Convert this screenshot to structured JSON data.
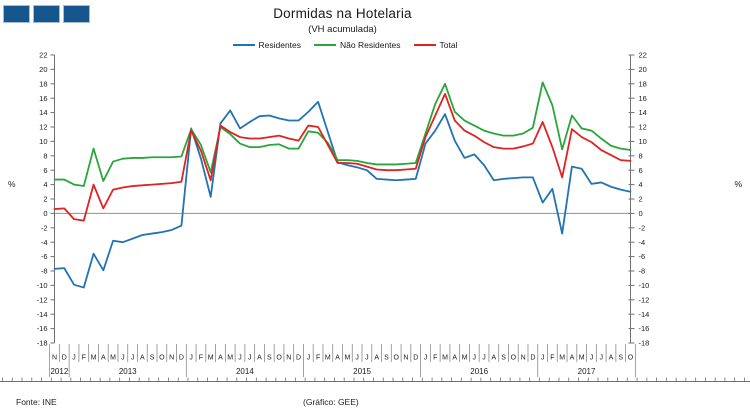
{
  "header": {
    "title": "Dormidas na Hotelaria",
    "subtitle": "(VH acumulada)"
  },
  "footer": {
    "source": "Fonte: INE",
    "credit": "(Gráfico: GEE)"
  },
  "chart_data": {
    "type": "line",
    "title": "Dormidas na Hotelaria",
    "subtitle": "(VH acumulada)",
    "unit_label": "%",
    "ylim": [
      -18,
      22
    ],
    "ytick_step": 2,
    "grid": "zero-line-only",
    "legend_position": "top-center",
    "axis_color": "#707070",
    "zero_line_color": "#909090",
    "x_month_labels": [
      "N",
      "D",
      "J",
      "F",
      "M",
      "A",
      "M",
      "J",
      "J",
      "A",
      "S",
      "O",
      "N",
      "D",
      "J",
      "F",
      "M",
      "A",
      "M",
      "J",
      "J",
      "A",
      "S",
      "O",
      "N",
      "D",
      "J",
      "F",
      "M",
      "A",
      "M",
      "J",
      "J",
      "A",
      "S",
      "O",
      "N",
      "D",
      "J",
      "F",
      "M",
      "A",
      "M",
      "J",
      "J",
      "A",
      "S",
      "O",
      "N",
      "D",
      "J",
      "F",
      "M",
      "A",
      "M",
      "J",
      "J",
      "A",
      "S",
      "O"
    ],
    "x_years": [
      {
        "label": "2012",
        "from": 0,
        "to": 1
      },
      {
        "label": "2013",
        "from": 2,
        "to": 13
      },
      {
        "label": "2014",
        "from": 14,
        "to": 25
      },
      {
        "label": "2015",
        "from": 26,
        "to": 37
      },
      {
        "label": "2016",
        "from": 38,
        "to": 49
      },
      {
        "label": "2017",
        "from": 50,
        "to": 59
      }
    ],
    "series": [
      {
        "name": "Residentes",
        "color": "#2173B4",
        "values": [
          -7.7,
          -7.6,
          -9.9,
          -10.3,
          -5.6,
          -7.9,
          -3.8,
          -4.0,
          -3.5,
          -3.0,
          -2.8,
          -2.6,
          -2.3,
          -1.7,
          11.8,
          7.6,
          2.3,
          12.5,
          14.3,
          11.8,
          12.7,
          13.5,
          13.6,
          13.2,
          12.9,
          12.9,
          14.1,
          15.5,
          11.3,
          7.1,
          6.7,
          6.4,
          6.0,
          4.8,
          4.7,
          4.6,
          4.7,
          4.8,
          9.7,
          11.5,
          13.8,
          10.1,
          7.7,
          8.2,
          6.7,
          4.6,
          4.8,
          4.9,
          5.0,
          5.0,
          1.5,
          3.4,
          -2.8,
          6.5,
          6.2,
          4.1,
          4.3,
          3.7,
          3.3,
          3.0
        ]
      },
      {
        "name": "Não Residentes",
        "color": "#2AA53C",
        "values": [
          4.7,
          4.7,
          4.0,
          3.8,
          9.0,
          4.5,
          7.2,
          7.6,
          7.7,
          7.7,
          7.8,
          7.8,
          7.8,
          7.9,
          11.7,
          9.5,
          5.7,
          12.0,
          11.0,
          9.7,
          9.2,
          9.2,
          9.5,
          9.6,
          9.0,
          9.0,
          11.4,
          11.2,
          9.8,
          7.4,
          7.4,
          7.3,
          7.0,
          6.8,
          6.8,
          6.8,
          6.9,
          7.0,
          11.1,
          15.2,
          18.0,
          14.1,
          12.9,
          12.2,
          11.5,
          11.1,
          10.8,
          10.8,
          11.1,
          11.9,
          18.2,
          15.0,
          8.9,
          13.6,
          11.8,
          11.5,
          10.4,
          9.4,
          9.0,
          8.8
        ]
      },
      {
        "name": "Total",
        "color": "#DE2321",
        "values": [
          0.6,
          0.7,
          -0.8,
          -1.0,
          4.0,
          0.7,
          3.3,
          3.6,
          3.8,
          3.9,
          4.0,
          4.1,
          4.2,
          4.4,
          11.5,
          8.7,
          4.6,
          12.2,
          11.3,
          10.6,
          10.4,
          10.4,
          10.6,
          10.8,
          10.4,
          10.1,
          12.2,
          12.0,
          9.5,
          7.0,
          7.0,
          6.9,
          6.5,
          6.1,
          6.0,
          6.0,
          6.1,
          6.2,
          10.6,
          13.6,
          16.6,
          12.9,
          11.5,
          10.8,
          9.9,
          9.2,
          9.0,
          9.0,
          9.3,
          9.7,
          12.7,
          9.2,
          5.0,
          11.7,
          10.6,
          9.9,
          8.8,
          8.1,
          7.4,
          7.3
        ]
      }
    ]
  }
}
